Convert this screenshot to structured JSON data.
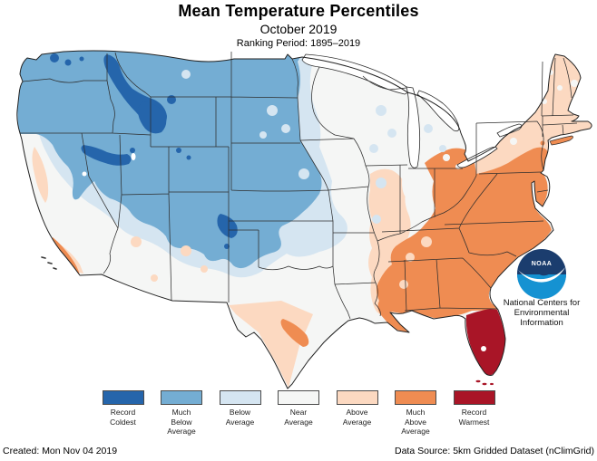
{
  "header": {
    "title": "Mean Temperature Percentiles",
    "subtitle": "October 2019",
    "ranking_period": "Ranking Period: 1895–2019"
  },
  "logo": {
    "name": "noaa-logo",
    "acronym": "NOAA",
    "org_lines": [
      "National Centers for",
      "Environmental",
      "Information"
    ]
  },
  "legend": {
    "items": [
      {
        "id": "record-coldest",
        "lines": [
          "Record",
          "Coldest"
        ],
        "color": "#2565ab"
      },
      {
        "id": "much-below",
        "lines": [
          "Much",
          "Below",
          "Average"
        ],
        "color": "#74add3"
      },
      {
        "id": "below-average",
        "lines": [
          "Below",
          "Average"
        ],
        "color": "#d5e5f1"
      },
      {
        "id": "near-average",
        "lines": [
          "Near",
          "Average"
        ],
        "color": "#f5f6f5"
      },
      {
        "id": "above-average",
        "lines": [
          "Above",
          "Average"
        ],
        "color": "#fcd9c1"
      },
      {
        "id": "much-above",
        "lines": [
          "Much",
          "Above",
          "Average"
        ],
        "color": "#ef8c52"
      },
      {
        "id": "record-warmest",
        "lines": [
          "Record",
          "Warmest"
        ],
        "color": "#a91527"
      }
    ]
  },
  "colors": {
    "record-coldest": "#2565ab",
    "much-below": "#74add3",
    "below-average": "#d5e5f1",
    "near-average": "#f5f6f5",
    "above-average": "#fcd9c1",
    "much-above": "#ef8c52",
    "record-warmest": "#a91527",
    "state-border": "#2e2e2e",
    "water": "#ffffff",
    "logo-navy": "#1b3d6e",
    "logo-blue": "#1592d2"
  },
  "map": {
    "description": "Contiguous United States mean temperature percentile map",
    "regions_summary": {
      "pacific-northwest-northern-rockies": "much-below with record-coldest pockets (Idaho, SW Montana, NE Nevada, N Utah)",
      "northern-central-plains": "much-below",
      "california-southwest": "near-average with above-average coastal patches",
      "upper-midwest-great-lakes": "below-average to near-average",
      "southeast-mid-atlantic": "much-above",
      "northeast-new-england": "above-average",
      "south-texas": "above-average with much-above coastal pocket",
      "florida-peninsula": "record-warmest"
    }
  },
  "footer": {
    "created": "Created: Mon Nov 04 2019",
    "data_source": "Data Source: 5km Gridded Dataset (nClimGrid)"
  }
}
